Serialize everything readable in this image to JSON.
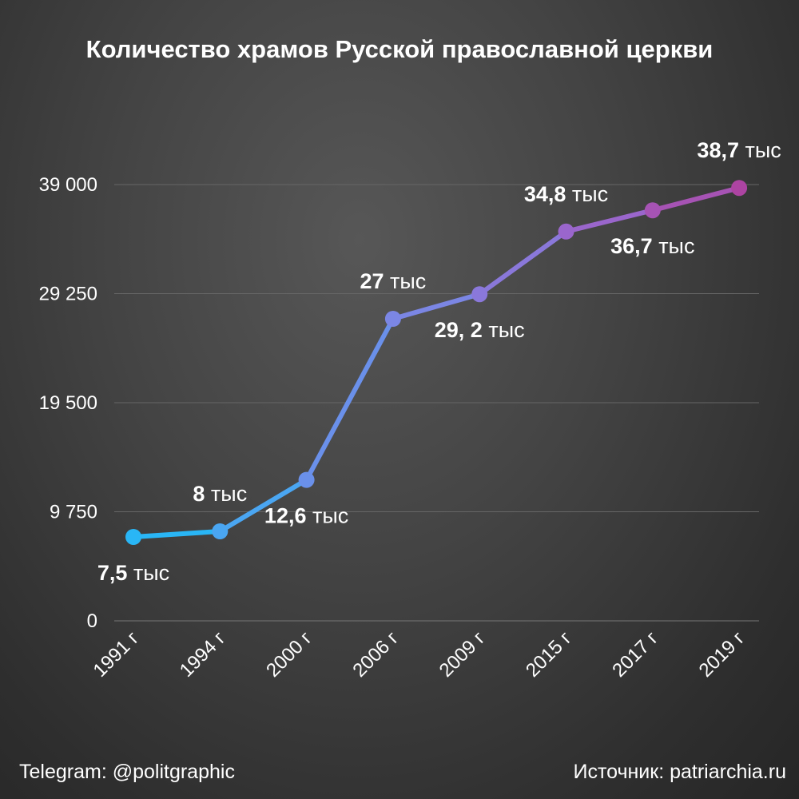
{
  "chart_data": {
    "type": "line",
    "title": "Количество храмов Русской православной церкви",
    "categories": [
      "1991 г",
      "1994 г",
      "2000 г",
      "2006 г",
      "2009 г",
      "2015 г",
      "2017 г",
      "2019 г"
    ],
    "values": [
      7500,
      8000,
      12600,
      27000,
      29200,
      34800,
      36700,
      38700
    ],
    "data_labels": [
      {
        "num": "7,5",
        "unit": "тыс",
        "pos": "below"
      },
      {
        "num": "8",
        "unit": "тыс",
        "pos": "above"
      },
      {
        "num": "12,6",
        "unit": "тыс",
        "pos": "below"
      },
      {
        "num": "27",
        "unit": "тыс",
        "pos": "above"
      },
      {
        "num": "29, 2",
        "unit": "тыс",
        "pos": "below"
      },
      {
        "num": "34,8",
        "unit": "тыс",
        "pos": "above"
      },
      {
        "num": "36,7",
        "unit": "тыс",
        "pos": "below"
      },
      {
        "num": "38,7",
        "unit": "тыс",
        "pos": "above"
      }
    ],
    "yticks": [
      0,
      9750,
      19500,
      29250,
      39000
    ],
    "ytick_labels": [
      "0",
      "9 750",
      "19 500",
      "29 250",
      "39 000"
    ],
    "ylim": [
      0,
      39000
    ],
    "grid": true,
    "colors": [
      "#29b6f6",
      "#4aa6f2",
      "#6a90ea",
      "#7b86e4",
      "#8a78da",
      "#9a66cc",
      "#a653b4",
      "#ad44a2"
    ]
  },
  "footer": {
    "left": "Telegram: @politgraphic",
    "right": "Источник: patriarchia.ru"
  }
}
